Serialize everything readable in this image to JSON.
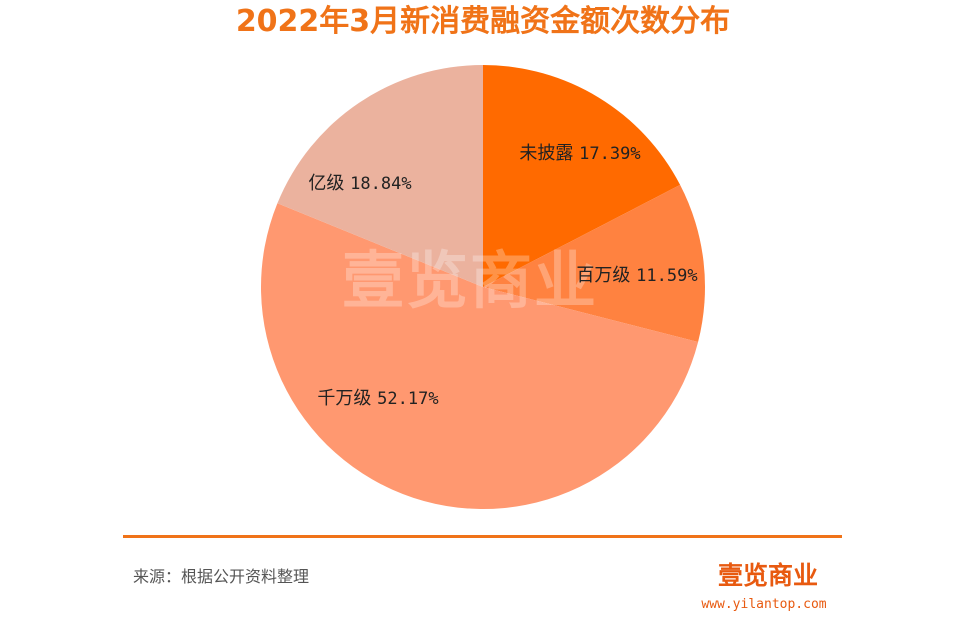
{
  "chart_data": {
    "type": "pie",
    "title": "2022年3月新消费融资金额次数分布",
    "slices": [
      {
        "label": "未披露",
        "value": 17.39,
        "display": "17.39%",
        "color": "#FF6A00"
      },
      {
        "label": "百万级",
        "value": 11.59,
        "display": "11.59%",
        "color": "#FF8240"
      },
      {
        "label": "千万级",
        "value": 52.17,
        "display": "52.17%",
        "color": "#FF9870"
      },
      {
        "label": "亿级",
        "value": 18.84,
        "display": "18.84%",
        "color": "#EBB29E"
      }
    ],
    "start_angle": "12 o'clock",
    "direction": "clockwise"
  },
  "footer": {
    "source": "来源：根据公开资料整理",
    "brand_name": "壹览商业",
    "brand_url": "www.yilantop.com"
  },
  "watermark": "壹览商业",
  "colors": {
    "title": "#F07318",
    "divider": "#F07318",
    "brand": "#E85A10"
  }
}
